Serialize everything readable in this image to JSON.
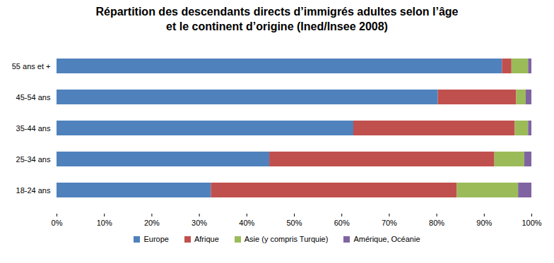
{
  "chart_data": {
    "type": "bar",
    "title": "Répartition des descendants directs d’immigrés adultes selon l’âge et le continent d’origine (Ined/Insee 2008)",
    "orientation": "horizontal",
    "stacked": true,
    "grid": false,
    "legend": "bottom",
    "data_labels": false,
    "categories": [
      "55 ans et +",
      "45-54 ans",
      "35-44 ans",
      "25-34 ans",
      "18-24 ans"
    ],
    "series": [
      {
        "name": "Europe",
        "color": "#4f81bd",
        "values": [
          93.8,
          80.3,
          62.5,
          44.8,
          32.5
        ]
      },
      {
        "name": "Afrique",
        "color": "#c0504d",
        "values": [
          2.0,
          16.5,
          34.0,
          47.4,
          51.8
        ]
      },
      {
        "name": "Asie (y compris Turquie)",
        "color": "#9bbb59",
        "values": [
          3.5,
          2.0,
          2.8,
          6.3,
          12.9
        ]
      },
      {
        "name": "Amérique, Océanie",
        "color": "#8064a2",
        "values": [
          0.7,
          1.2,
          0.7,
          1.5,
          2.8
        ]
      }
    ],
    "xlim": [
      0,
      100
    ],
    "xticks": [
      {
        "value": 0,
        "label": "0%"
      },
      {
        "value": 10,
        "label": "10%"
      },
      {
        "value": 20,
        "label": "20%"
      },
      {
        "value": 30,
        "label": "30%"
      },
      {
        "value": 40,
        "label": "40%"
      },
      {
        "value": 50,
        "label": "50%"
      },
      {
        "value": 60,
        "label": "60%"
      },
      {
        "value": 70,
        "label": "70%"
      },
      {
        "value": 80,
        "label": "80%"
      },
      {
        "value": 90,
        "label": "90%"
      },
      {
        "value": 100,
        "label": "100%"
      }
    ]
  }
}
